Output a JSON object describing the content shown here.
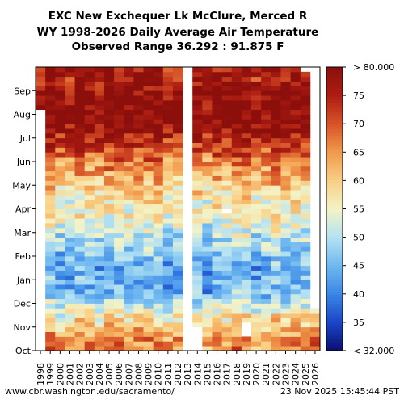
{
  "chart_data": {
    "type": "heatmap",
    "title_lines": [
      "EXC New Exchequer Lk McClure, Merced R",
      "WY 1998-2026 Daily Average Air Temperature",
      "Observed Range 36.292 : 91.875 F"
    ],
    "x": [
      "1998",
      "1999",
      "2000",
      "2001",
      "2002",
      "2003",
      "2004",
      "2005",
      "2006",
      "2007",
      "2008",
      "2009",
      "2010",
      "2011",
      "2012",
      "2013",
      "2014",
      "2015",
      "2016",
      "2017",
      "2018",
      "2019",
      "2020",
      "2021",
      "2022",
      "2023",
      "2024",
      "2025",
      "2026"
    ],
    "y_months": [
      "Oct",
      "Nov",
      "Dec",
      "Jan",
      "Feb",
      "Mar",
      "Apr",
      "May",
      "Jun",
      "Jul",
      "Aug",
      "Sep"
    ],
    "colorbar": {
      "ticks": [
        "< 32.000",
        "35",
        "40",
        "45",
        "50",
        "55",
        "60",
        "65",
        "70",
        "75",
        "> 80.000"
      ],
      "min": 32,
      "max": 80,
      "colors": [
        "#0b0e6e",
        "#1a45c8",
        "#3a86e6",
        "#6fb8f0",
        "#b4e2f2",
        "#f3f3c6",
        "#f9cf84",
        "#f19a4c",
        "#d85428",
        "#ad1d12",
        "#8c0f0c"
      ]
    },
    "monthly_mean_f": [
      66,
      57,
      46,
      45,
      50,
      55,
      58,
      64,
      71,
      79,
      80,
      76
    ],
    "missing": [
      {
        "year": "1998",
        "from_month": 0,
        "to_month": 10.2
      },
      {
        "year": "2013",
        "from_month": 0,
        "to_month": 12
      },
      {
        "year": "2014",
        "from_month": 0,
        "to_month": 0.9
      },
      {
        "year": "2019",
        "from_month": 0.7,
        "to_month": 1.2
      },
      {
        "year": "2017",
        "from_month": 5.8,
        "to_month": 5.95
      },
      {
        "year": "2025",
        "from_month": 11.9,
        "to_month": 12
      },
      {
        "year": "2026",
        "from_month": 1.8,
        "to_month": 12
      }
    ]
  },
  "footer": {
    "source": "www.cbr.washington.edu/sacramento/",
    "timestamp": "23 Nov 2025 15:45:44 PST"
  }
}
